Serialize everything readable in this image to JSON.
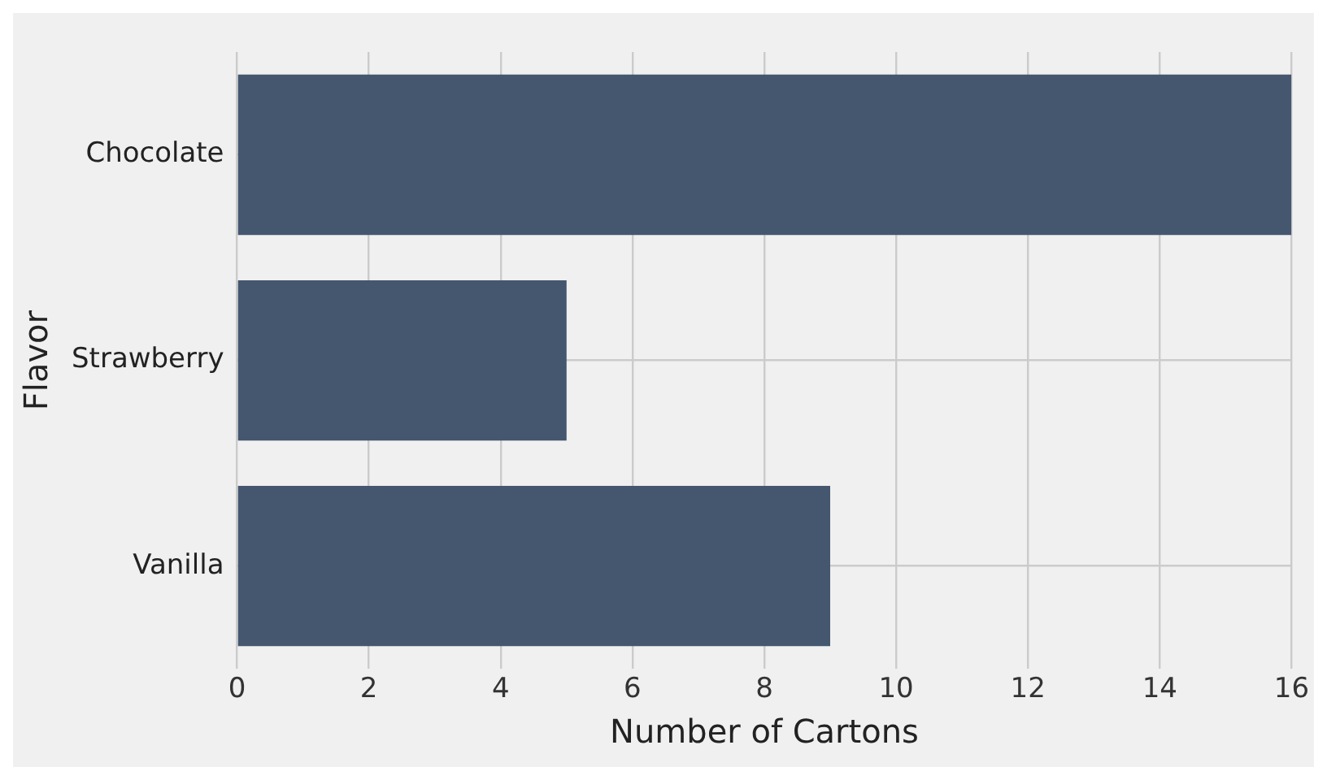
{
  "chart_data": {
    "type": "bar",
    "orientation": "horizontal",
    "categories": [
      "Chocolate",
      "Strawberry",
      "Vanilla"
    ],
    "values": [
      16,
      5,
      9
    ],
    "color": "#45566f",
    "xlabel": "Number of Cartons",
    "ylabel": "Flavor",
    "xlim": [
      0,
      16
    ],
    "xticks": [
      0,
      2,
      4,
      6,
      8,
      10,
      12,
      14,
      16
    ],
    "grid": true,
    "legend": false
  }
}
